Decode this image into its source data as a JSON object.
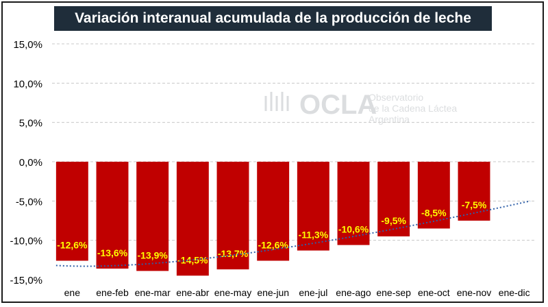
{
  "chart_data": {
    "type": "bar",
    "title": "Variación interanual acumulada de la producción de leche",
    "categories": [
      "ene",
      "ene-feb",
      "ene-mar",
      "ene-abr",
      "ene-may",
      "ene-jun",
      "ene-jul",
      "ene-ago",
      "ene-sep",
      "ene-oct",
      "ene-nov",
      "ene-dic"
    ],
    "values": [
      -12.6,
      -13.6,
      -13.9,
      -14.5,
      -13.7,
      -12.6,
      -11.3,
      -10.6,
      -9.5,
      -8.5,
      -7.5,
      null
    ],
    "value_labels": [
      "-12,6%",
      "-13,6%",
      "-13,9%",
      "-14,5%",
      "-13,7%",
      "-12,6%",
      "-11,3%",
      "-10,6%",
      "-9,5%",
      "-8,5%",
      "-7,5%",
      ""
    ],
    "ylim": [
      -15,
      15
    ],
    "yticks": [
      15,
      10,
      5,
      0,
      -5,
      -10,
      -15
    ],
    "ytick_labels": [
      "15,0%",
      "10,0%",
      "5,0%",
      "0,0%",
      "-5,0%",
      "-10,0%",
      "-15,0%"
    ],
    "trendline": {
      "style": "dotted",
      "x_start": -0.4,
      "x_end": 11.4,
      "y_start": -13.2,
      "y_end": -5.0
    },
    "bar_color": "#c00000",
    "label_color": "#ffff00",
    "trend_color": "#2e5fa8",
    "xlabel": "",
    "ylabel": ""
  },
  "watermark": {
    "brand": "OCLA",
    "line1": "Observatorio",
    "line2": "de la Cadena Láctea",
    "line3": "Argentina"
  }
}
